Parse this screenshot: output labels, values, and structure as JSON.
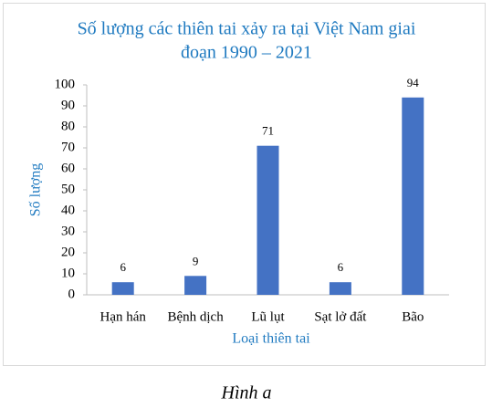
{
  "chart_data": {
    "type": "bar",
    "title": [
      "Số lượng các thiên tai xảy ra tại Việt Nam giai",
      "đoạn 1990 – 2021"
    ],
    "x_label": "Loại thiên tai",
    "y_label": "Số lượng",
    "categories": [
      "Hạn hán",
      "Bệnh dịch",
      "Lũ lụt",
      "Sạt lở đất",
      "Bão"
    ],
    "values": [
      6,
      9,
      71,
      6,
      94
    ],
    "color": "#4472c4",
    "ylim": [
      0,
      100
    ],
    "yticks": [
      0,
      10,
      20,
      30,
      40,
      50,
      60,
      70,
      80,
      90,
      100
    ],
    "grid": false,
    "data_labels": true
  },
  "caption": "Hình a"
}
